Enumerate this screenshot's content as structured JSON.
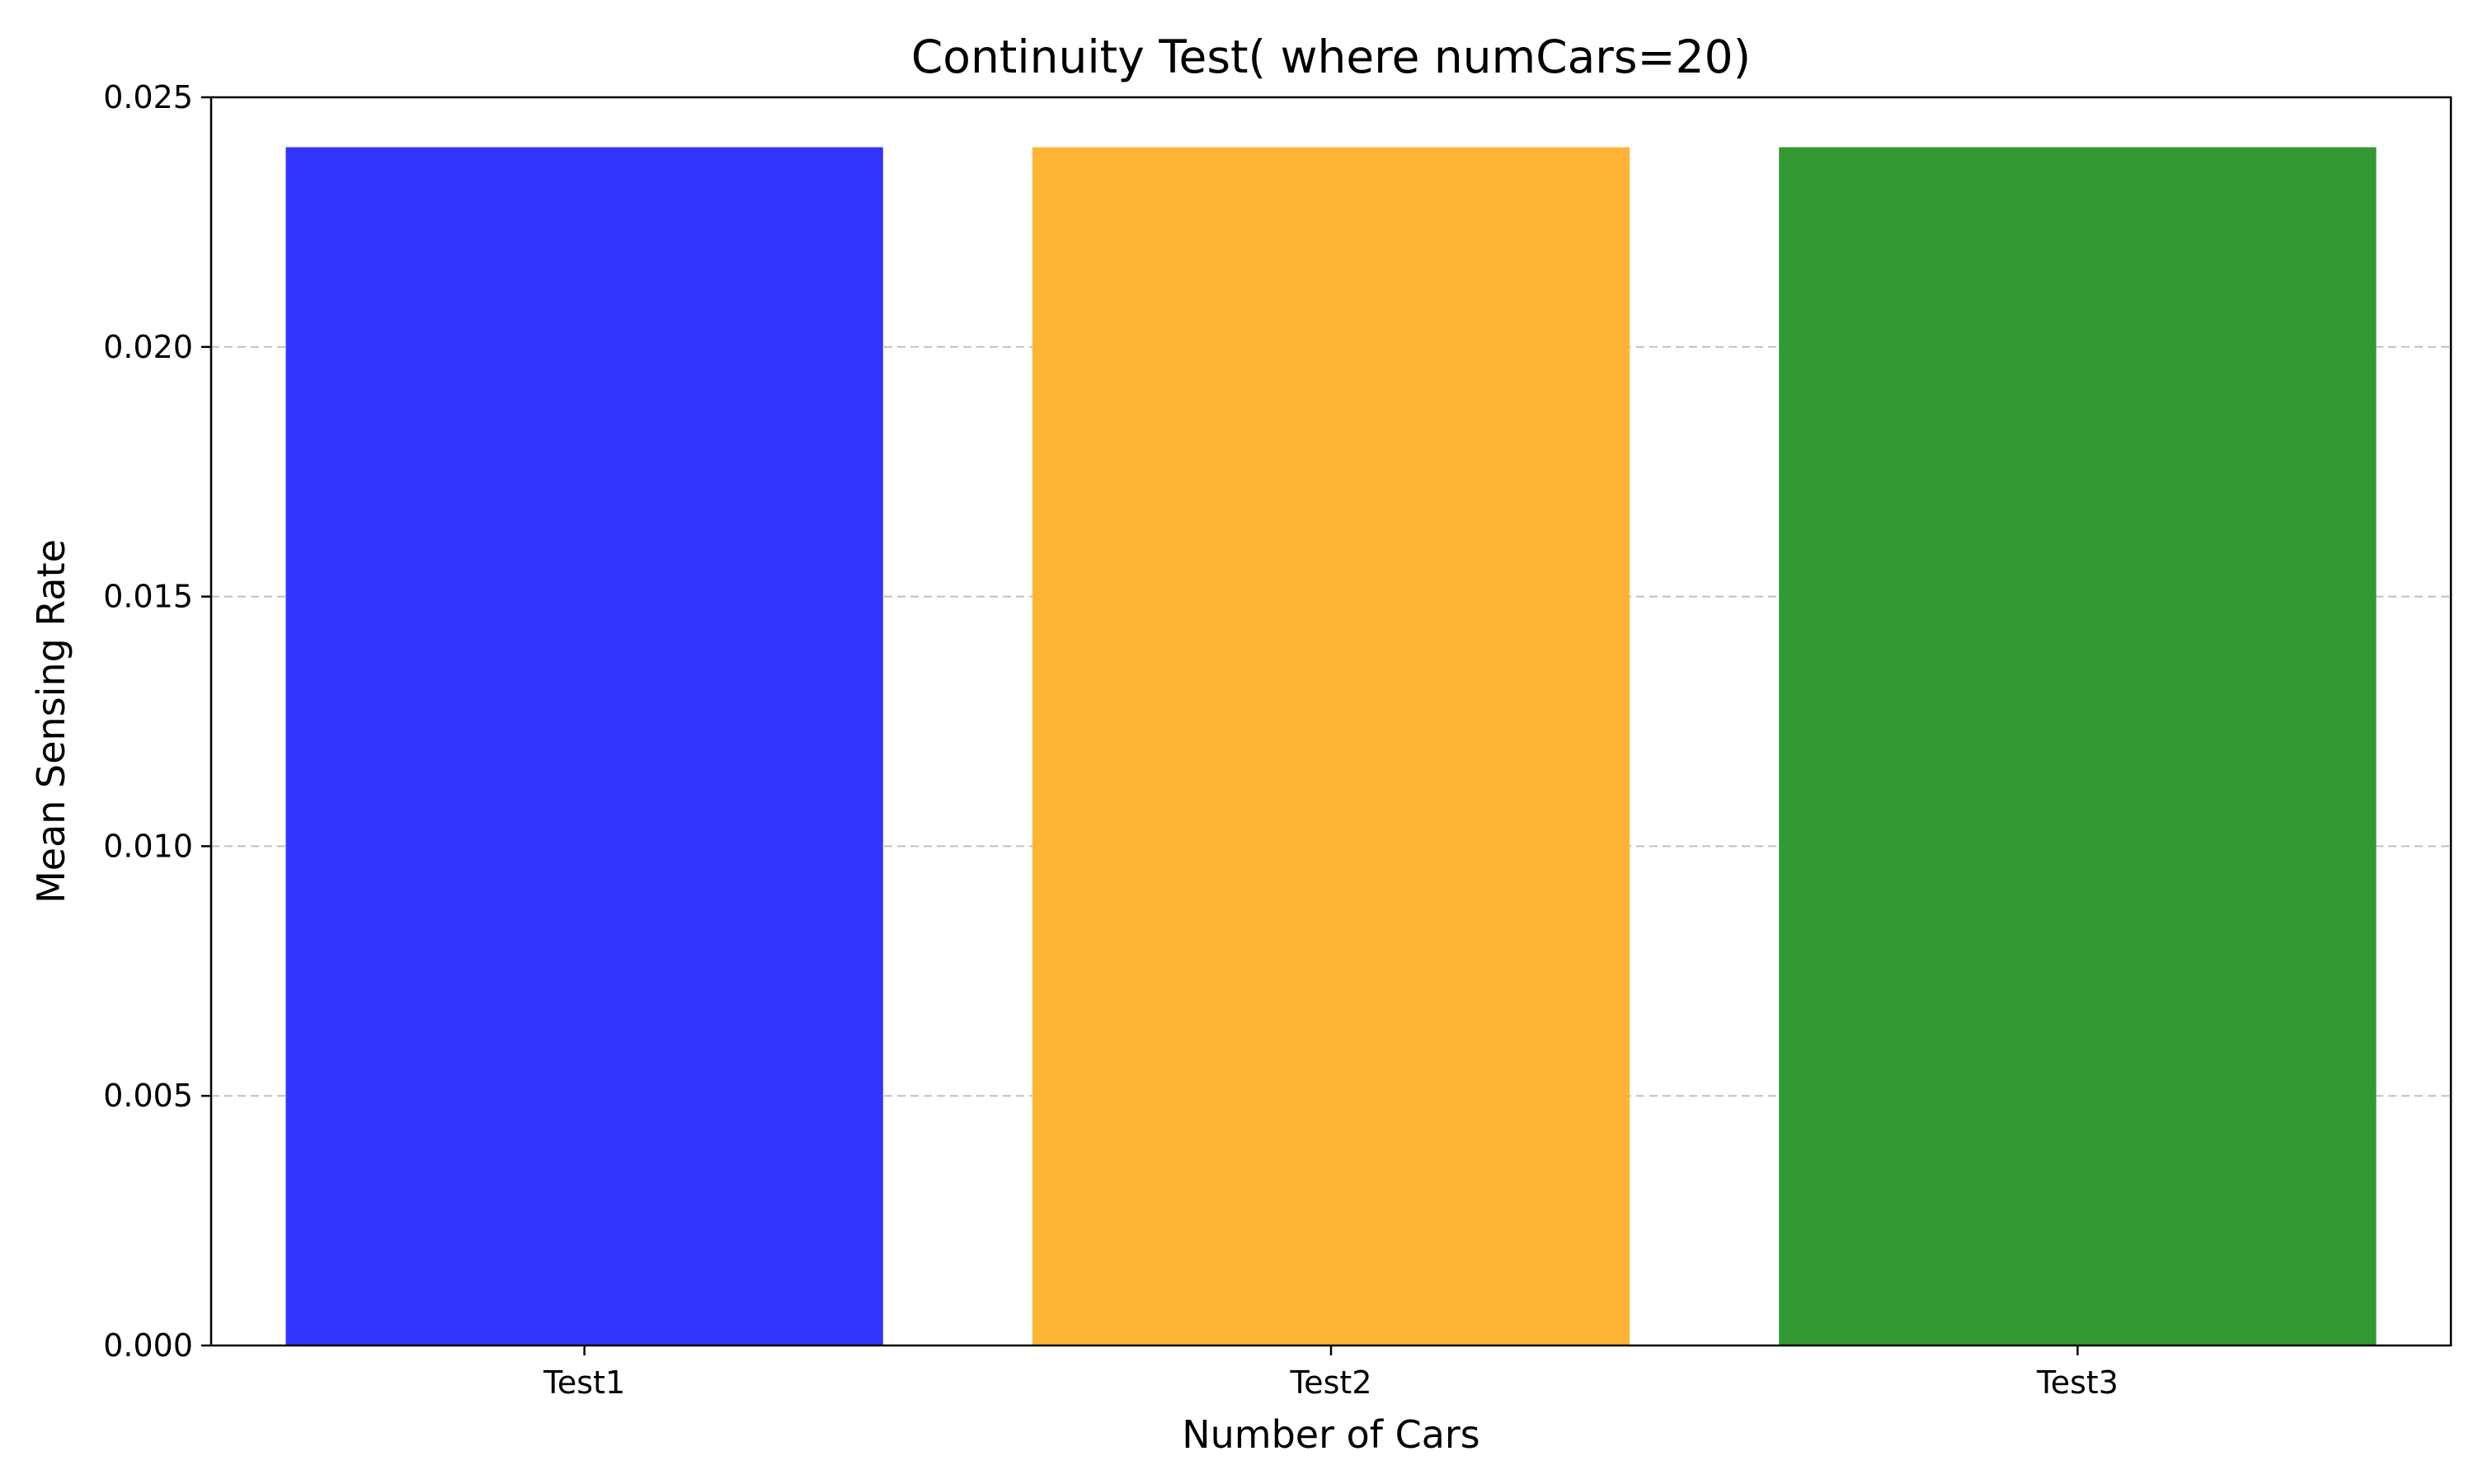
{
  "chart_data": {
    "type": "bar",
    "title": "Continuity Test( where numCars=20)",
    "xlabel": "Number of Cars",
    "ylabel": "Mean Sensing Rate",
    "categories": [
      "Test1",
      "Test2",
      "Test3"
    ],
    "values": [
      0.024,
      0.024,
      0.024
    ],
    "colors": [
      "#3333ff",
      "#ffb533",
      "#339933"
    ],
    "ylim": [
      0,
      0.025
    ],
    "yticks": [
      "0.000",
      "0.005",
      "0.010",
      "0.015",
      "0.020",
      "0.025"
    ],
    "grid": "y-dashed",
    "grid_color": "#c0c0c0",
    "legend": "none"
  }
}
